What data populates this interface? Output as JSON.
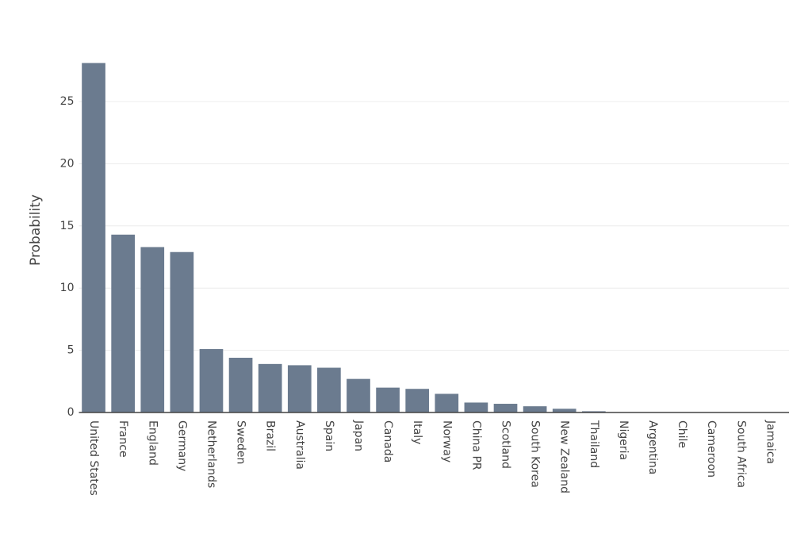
{
  "chart_data": {
    "type": "bar",
    "y_label": "Probability",
    "categories": [
      "United States",
      "France",
      "England",
      "Germany",
      "Netherlands",
      "Sweden",
      "Brazil",
      "Australia",
      "Spain",
      "Japan",
      "Canada",
      "Italy",
      "Norway",
      "China PR",
      "Scotland",
      "South Korea",
      "New Zealand",
      "Thailand",
      "Nigeria",
      "Argentina",
      "Chile",
      "Cameroon",
      "South Africa",
      "Jamaica"
    ],
    "values": [
      28.1,
      14.3,
      13.3,
      12.9,
      5.1,
      4.4,
      3.9,
      3.8,
      3.6,
      2.7,
      2.0,
      1.9,
      1.5,
      0.8,
      0.7,
      0.5,
      0.3,
      0.1,
      0,
      0,
      0,
      0,
      0,
      0
    ],
    "color": "#6b7b8f",
    "ylim": [
      0,
      28.1
    ],
    "yticks": [
      0,
      5,
      10,
      15,
      20,
      25
    ],
    "grid": true
  }
}
